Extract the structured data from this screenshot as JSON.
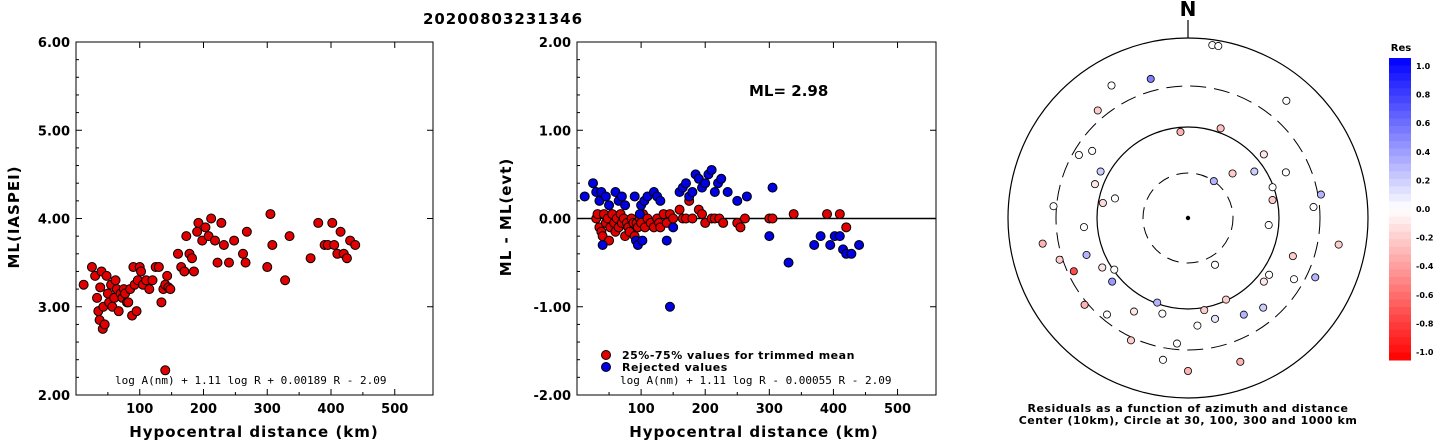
{
  "title": "20200803231346",
  "ml_label": "ML= 2.98",
  "chart_data": [
    {
      "type": "scatter",
      "id": "left",
      "ylabel": "ML(IASPEI)",
      "xlabel": "Hypocentral distance (km)",
      "xlim": [
        0,
        560
      ],
      "ylim": [
        2.0,
        6.0
      ],
      "xticks": [
        "100",
        "200",
        "300",
        "400",
        "500"
      ],
      "yticks": [
        "2.00",
        "3.00",
        "4.00",
        "5.00",
        "6.00"
      ],
      "formula": "log A(nm) + 1.11 log R + 0.00189 R - 2.09",
      "color": "#e00000",
      "points": [
        [
          12,
          3.25
        ],
        [
          25,
          3.45
        ],
        [
          30,
          3.35
        ],
        [
          33,
          3.1
        ],
        [
          35,
          2.95
        ],
        [
          37,
          2.85
        ],
        [
          38,
          3.22
        ],
        [
          40,
          3.4
        ],
        [
          42,
          2.75
        ],
        [
          43,
          3.0
        ],
        [
          45,
          2.8
        ],
        [
          48,
          3.35
        ],
        [
          50,
          3.15
        ],
        [
          52,
          3.05
        ],
        [
          55,
          3.25
        ],
        [
          57,
          3.0
        ],
        [
          60,
          3.1
        ],
        [
          62,
          3.3
        ],
        [
          64,
          3.2
        ],
        [
          67,
          2.95
        ],
        [
          70,
          3.15
        ],
        [
          73,
          3.1
        ],
        [
          75,
          3.2
        ],
        [
          77,
          3.15
        ],
        [
          80,
          3.05
        ],
        [
          82,
          3.05
        ],
        [
          85,
          3.2
        ],
        [
          88,
          2.9
        ],
        [
          90,
          3.45
        ],
        [
          92,
          3.25
        ],
        [
          95,
          2.95
        ],
        [
          97,
          3.3
        ],
        [
          100,
          3.45
        ],
        [
          102,
          3.4
        ],
        [
          105,
          3.25
        ],
        [
          110,
          3.3
        ],
        [
          115,
          3.2
        ],
        [
          120,
          3.3
        ],
        [
          125,
          3.45
        ],
        [
          130,
          3.45
        ],
        [
          134,
          3.05
        ],
        [
          137,
          3.2
        ],
        [
          140,
          3.25
        ],
        [
          143,
          3.35
        ],
        [
          145,
          3.22
        ],
        [
          148,
          3.2
        ],
        [
          140,
          2.28
        ],
        [
          160,
          3.6
        ],
        [
          165,
          3.45
        ],
        [
          170,
          3.4
        ],
        [
          173,
          3.8
        ],
        [
          178,
          3.6
        ],
        [
          182,
          3.55
        ],
        [
          185,
          3.4
        ],
        [
          190,
          3.85
        ],
        [
          192,
          3.95
        ],
        [
          198,
          3.75
        ],
        [
          203,
          3.9
        ],
        [
          208,
          3.8
        ],
        [
          212,
          4.0
        ],
        [
          218,
          3.75
        ],
        [
          222,
          3.5
        ],
        [
          228,
          3.95
        ],
        [
          232,
          3.7
        ],
        [
          240,
          3.5
        ],
        [
          248,
          3.75
        ],
        [
          262,
          3.6
        ],
        [
          266,
          3.5
        ],
        [
          268,
          3.85
        ],
        [
          300,
          3.45
        ],
        [
          305,
          4.05
        ],
        [
          308,
          3.7
        ],
        [
          328,
          3.3
        ],
        [
          335,
          3.8
        ],
        [
          368,
          3.55
        ],
        [
          380,
          3.95
        ],
        [
          390,
          3.7
        ],
        [
          395,
          3.7
        ],
        [
          402,
          3.95
        ],
        [
          405,
          3.7
        ],
        [
          410,
          3.6
        ],
        [
          415,
          3.85
        ],
        [
          420,
          3.6
        ],
        [
          425,
          3.55
        ],
        [
          430,
          3.75
        ],
        [
          438,
          3.7
        ]
      ]
    },
    {
      "type": "scatter",
      "id": "middle",
      "ylabel": "ML - ML(evt)",
      "xlabel": "Hypocentral distance (km)",
      "xlim": [
        0,
        560
      ],
      "ylim": [
        -2.0,
        2.0
      ],
      "xticks": [
        "100",
        "200",
        "300",
        "400",
        "500"
      ],
      "yticks": [
        "-2.00",
        "-1.00",
        "0.00",
        "1.00",
        "2.00"
      ],
      "formula": "log A(nm) + 1.11 log R - 0.00055 R - 2.09",
      "legend": [
        "25%-75% values for trimmed mean",
        "Rejected values"
      ],
      "series": [
        {
          "name": "25%-75% values for trimmed mean",
          "color": "#e00000",
          "points": [
            [
              30,
              0.0
            ],
            [
              32,
              0.05
            ],
            [
              35,
              -0.1
            ],
            [
              38,
              -0.15
            ],
            [
              40,
              -0.2
            ],
            [
              42,
              0.05
            ],
            [
              45,
              -0.05
            ],
            [
              48,
              0.0
            ],
            [
              50,
              -0.25
            ],
            [
              52,
              -0.1
            ],
            [
              55,
              0.05
            ],
            [
              58,
              -0.05
            ],
            [
              60,
              -0.15
            ],
            [
              62,
              0.0
            ],
            [
              65,
              -0.1
            ],
            [
              68,
              0.05
            ],
            [
              70,
              -0.05
            ],
            [
              73,
              0.0
            ],
            [
              75,
              -0.2
            ],
            [
              78,
              -0.05
            ],
            [
              80,
              -0.1
            ],
            [
              82,
              -0.15
            ],
            [
              85,
              0.0
            ],
            [
              88,
              -0.05
            ],
            [
              90,
              -0.2
            ],
            [
              93,
              -0.05
            ],
            [
              95,
              -0.1
            ],
            [
              98,
              0.0
            ],
            [
              100,
              -0.05
            ],
            [
              103,
              0.05
            ],
            [
              106,
              -0.1
            ],
            [
              110,
              0.0
            ],
            [
              115,
              -0.05
            ],
            [
              120,
              -0.1
            ],
            [
              125,
              0.0
            ],
            [
              128,
              -0.05
            ],
            [
              130,
              -0.1
            ],
            [
              135,
              0.05
            ],
            [
              140,
              -0.05
            ],
            [
              145,
              0.05
            ],
            [
              150,
              0.0
            ],
            [
              160,
              0.1
            ],
            [
              165,
              0.0
            ],
            [
              170,
              0.0
            ],
            [
              175,
              0.2
            ],
            [
              180,
              0.0
            ],
            [
              190,
              0.1
            ],
            [
              195,
              0.05
            ],
            [
              200,
              -0.05
            ],
            [
              210,
              0.0
            ],
            [
              215,
              0.0
            ],
            [
              222,
              0.0
            ],
            [
              228,
              -0.05
            ],
            [
              250,
              -0.05
            ],
            [
              255,
              -0.1
            ],
            [
              262,
              0.0
            ],
            [
              300,
              0.0
            ],
            [
              305,
              0.0
            ],
            [
              338,
              0.05
            ],
            [
              390,
              0.05
            ],
            [
              410,
              0.05
            ],
            [
              420,
              -0.1
            ]
          ]
        },
        {
          "name": "Rejected values",
          "color": "#0000e0",
          "points": [
            [
              12,
              0.25
            ],
            [
              25,
              0.4
            ],
            [
              30,
              0.3
            ],
            [
              35,
              0.2
            ],
            [
              38,
              0.3
            ],
            [
              40,
              -0.3
            ],
            [
              45,
              0.25
            ],
            [
              50,
              0.15
            ],
            [
              60,
              0.3
            ],
            [
              65,
              0.2
            ],
            [
              70,
              0.25
            ],
            [
              75,
              0.15
            ],
            [
              90,
              0.25
            ],
            [
              92,
              -0.25
            ],
            [
              95,
              -0.3
            ],
            [
              98,
              0.05
            ],
            [
              100,
              0.15
            ],
            [
              102,
              -0.25
            ],
            [
              105,
              0.2
            ],
            [
              110,
              0.25
            ],
            [
              120,
              0.3
            ],
            [
              125,
              0.25
            ],
            [
              130,
              0.2
            ],
            [
              140,
              -0.25
            ],
            [
              145,
              -1.0
            ],
            [
              150,
              -0.1
            ],
            [
              160,
              0.3
            ],
            [
              165,
              0.35
            ],
            [
              170,
              0.4
            ],
            [
              175,
              0.25
            ],
            [
              180,
              0.3
            ],
            [
              185,
              0.5
            ],
            [
              190,
              0.45
            ],
            [
              195,
              0.35
            ],
            [
              200,
              0.4
            ],
            [
              205,
              0.5
            ],
            [
              210,
              0.55
            ],
            [
              215,
              0.3
            ],
            [
              220,
              0.4
            ],
            [
              225,
              0.45
            ],
            [
              235,
              0.3
            ],
            [
              250,
              0.2
            ],
            [
              265,
              0.25
            ],
            [
              300,
              -0.2
            ],
            [
              305,
              0.35
            ],
            [
              330,
              -0.5
            ],
            [
              370,
              -0.3
            ],
            [
              380,
              -0.2
            ],
            [
              395,
              -0.3
            ],
            [
              402,
              -0.2
            ],
            [
              410,
              -0.2
            ],
            [
              415,
              -0.35
            ],
            [
              420,
              -0.4
            ],
            [
              428,
              -0.4
            ],
            [
              440,
              -0.3
            ]
          ]
        }
      ]
    },
    {
      "type": "scatter",
      "id": "polar",
      "north_label": "N",
      "caption_line1": "Residuals as a function of azimuth and distance",
      "caption_line2": "Center (10km), Circle at 30, 100, 300 and 1000 km",
      "colorbar_title": "Res",
      "colorbar_ticks": [
        "1.0",
        "0.8",
        "0.6",
        "0.4",
        "0.2",
        "0.0",
        "-0.2",
        "-0.4",
        "-0.6",
        "-0.8",
        "-1.0"
      ],
      "stations_azimuth_deg_radius_norm_residual": [
        [
          8,
          0.97,
          0
        ],
        [
          10,
          0.97,
          0
        ],
        [
          -15,
          0.8,
          0.5
        ],
        [
          -30,
          0.85,
          0
        ],
        [
          -40,
          0.78,
          -0.2
        ],
        [
          -5,
          0.48,
          -0.3
        ],
        [
          20,
          0.53,
          -0.25
        ],
        [
          40,
          0.85,
          0
        ],
        [
          -55,
          0.65,
          0
        ],
        [
          -60,
          0.7,
          0
        ],
        [
          -62,
          0.55,
          0.2
        ],
        [
          -70,
          0.55,
          -0.1
        ],
        [
          -85,
          0.75,
          0
        ],
        [
          -75,
          0.42,
          0
        ],
        [
          -80,
          0.48,
          -0.15
        ],
        [
          -95,
          0.58,
          0
        ],
        [
          -100,
          0.82,
          -0.3
        ],
        [
          -108,
          0.75,
          -0.2
        ],
        [
          -110,
          0.6,
          0.3
        ],
        [
          -120,
          0.55,
          -0.1
        ],
        [
          -115,
          0.7,
          -0.7
        ],
        [
          -125,
          0.5,
          0
        ],
        [
          -130,
          0.55,
          0.4
        ],
        [
          -130,
          0.75,
          -0.3
        ],
        [
          -140,
          0.7,
          0
        ],
        [
          -150,
          0.6,
          -0.1
        ],
        [
          -155,
          0.75,
          -0.2
        ],
        [
          -160,
          0.5,
          0.3
        ],
        [
          -165,
          0.55,
          0
        ],
        [
          -170,
          0.8,
          0
        ],
        [
          -175,
          0.7,
          0
        ],
        [
          180,
          0.85,
          -0.3
        ],
        [
          175,
          0.6,
          0
        ],
        [
          170,
          0.52,
          -0.2
        ],
        [
          165,
          0.58,
          0.1
        ],
        [
          160,
          0.85,
          -0.3
        ],
        [
          155,
          0.5,
          -0.2
        ],
        [
          150,
          0.62,
          0.3
        ],
        [
          140,
          0.65,
          0.2
        ],
        [
          130,
          0.55,
          -0.1
        ],
        [
          125,
          0.55,
          0
        ],
        [
          120,
          0.68,
          0
        ],
        [
          115,
          0.78,
          0.3
        ],
        [
          110,
          0.62,
          -0.2
        ],
        [
          100,
          0.85,
          -0.2
        ],
        [
          95,
          0.45,
          0
        ],
        [
          85,
          0.7,
          0
        ],
        [
          80,
          0.75,
          0.3
        ],
        [
          78,
          0.48,
          -0.2
        ],
        [
          70,
          0.5,
          0
        ],
        [
          65,
          0.6,
          0
        ],
        [
          55,
          0.45,
          0.2
        ],
        [
          50,
          0.55,
          -0.1
        ],
        [
          45,
          0.35,
          -0.2
        ],
        [
          35,
          0.25,
          0.3
        ],
        [
          150,
          0.3,
          0
        ]
      ]
    }
  ]
}
